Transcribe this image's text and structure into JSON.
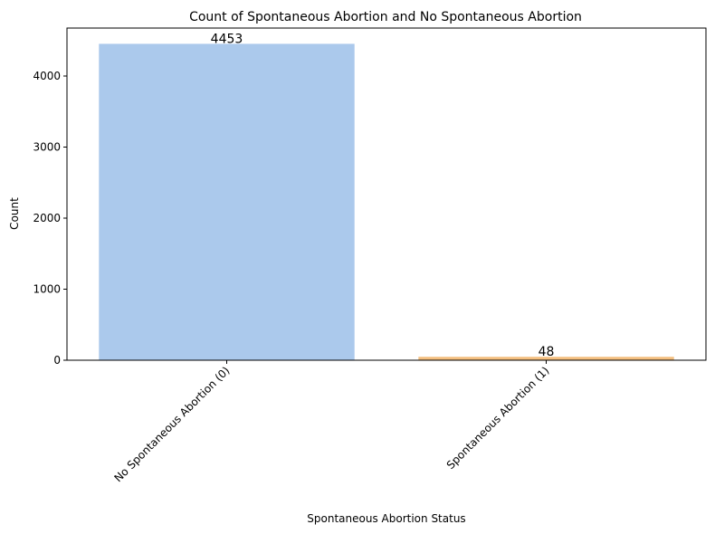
{
  "chart_data": {
    "type": "bar",
    "title": "Count of Spontaneous Abortion and No Spontaneous Abortion",
    "xlabel": "Spontaneous Abortion Status",
    "ylabel": "Count",
    "categories": [
      "No Spontaneous Abortion (0)",
      "Spontaneous Abortion (1)"
    ],
    "values": [
      4453,
      48
    ],
    "data_labels": [
      "4453",
      "48"
    ],
    "colors": [
      "#abc9ec",
      "#f3be7f"
    ],
    "ylim": [
      0,
      4675
    ],
    "yticks": [
      0,
      1000,
      2000,
      3000,
      4000
    ],
    "grid": false,
    "legend": "none"
  }
}
